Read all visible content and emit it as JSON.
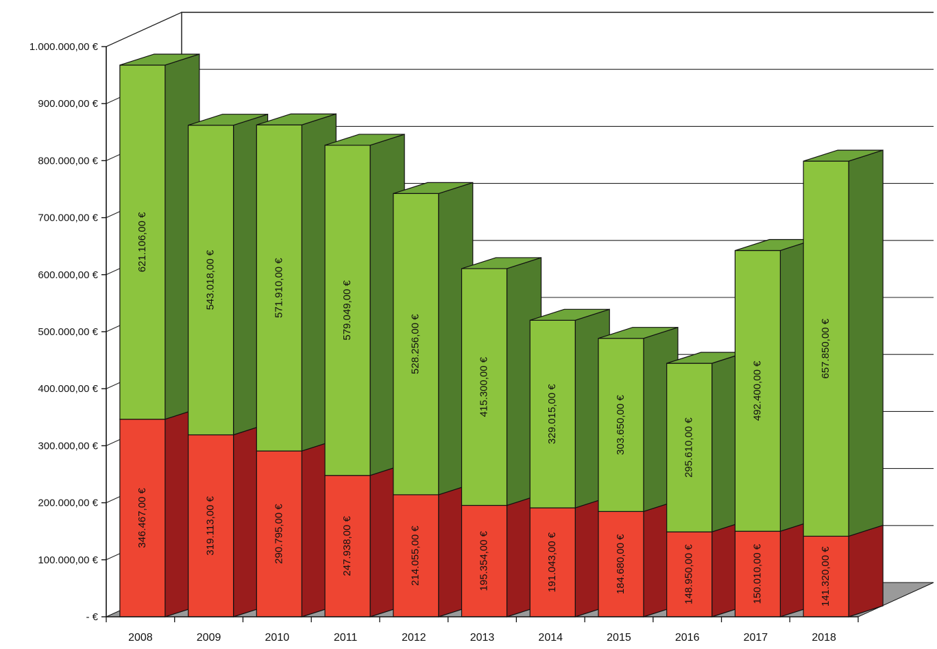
{
  "chart_data": {
    "type": "bar",
    "stacked": true,
    "three_d": true,
    "categories": [
      "2008",
      "2009",
      "2010",
      "2011",
      "2012",
      "2013",
      "2014",
      "2015",
      "2016",
      "2017",
      "2018"
    ],
    "series": [
      {
        "color_front": "#ee4532",
        "color_side": "#9a1c1c",
        "color_top": "#c62a22",
        "values": [
          346467,
          319113,
          290795,
          247938,
          214055,
          195354,
          191043,
          184680,
          148950,
          150010,
          141320
        ],
        "labels": [
          "346.467,00 €",
          "319.113,00 €",
          "290.795,00 €",
          "247.938,00 €",
          "214.055,00 €",
          "195.354,00 €",
          "191.043,00 €",
          "184.680,00 €",
          "148.950,00 €",
          "150.010,00 €",
          "141.320,00 €"
        ]
      },
      {
        "color_front": "#8cc43e",
        "color_side": "#4f7c2c",
        "color_top": "#6ea63a",
        "values": [
          621106,
          543018,
          571910,
          579049,
          528256,
          415300,
          329015,
          303650,
          295610,
          492400,
          657850
        ],
        "labels": [
          "621.106,00 €",
          "543.018,00 €",
          "571.910,00 €",
          "579.049,00 €",
          "528.256,00 €",
          "415.300,00 €",
          "329.015,00 €",
          "303.650,00 €",
          "295.610,00 €",
          "492.400,00 €",
          "657.850,00 €"
        ]
      }
    ],
    "ylim": [
      0,
      1000000
    ],
    "ytick_values": [
      0,
      100000,
      200000,
      300000,
      400000,
      500000,
      600000,
      700000,
      800000,
      900000,
      1000000
    ],
    "ytick_labels": [
      "- €",
      "100.000,00 €",
      "200.000,00 €",
      "300.000,00 €",
      "400.000,00 €",
      "500.000,00 €",
      "600.000,00 €",
      "700.000,00 €",
      "800.000,00 €",
      "900.000,00 €",
      "1.000.000,00 €"
    ],
    "grid": true,
    "legend": "none",
    "title": "",
    "xlabel": "",
    "ylabel": ""
  },
  "colors": {
    "floor": "#9a9a9a",
    "grid": "#222222",
    "edge": "#111111"
  }
}
